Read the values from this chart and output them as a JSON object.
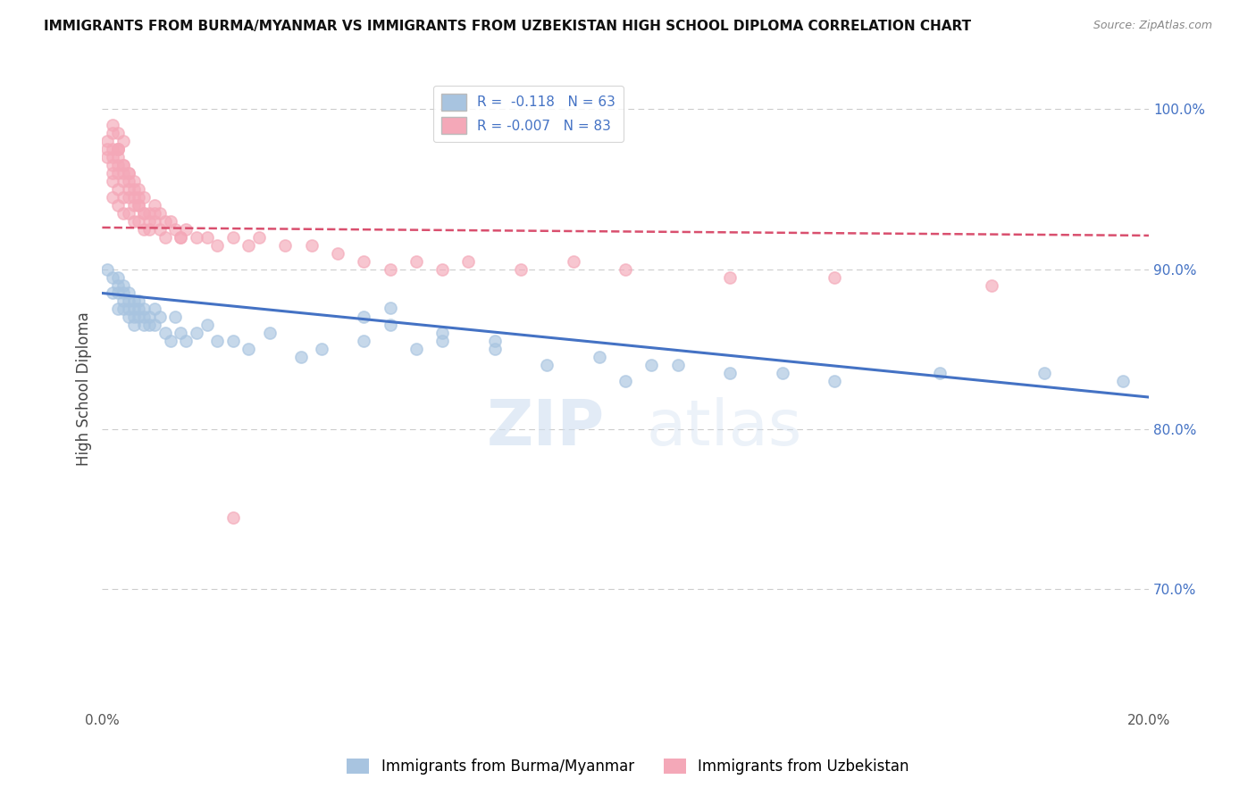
{
  "title": "IMMIGRANTS FROM BURMA/MYANMAR VS IMMIGRANTS FROM UZBEKISTAN HIGH SCHOOL DIPLOMA CORRELATION CHART",
  "source": "Source: ZipAtlas.com",
  "ylabel": "High School Diploma",
  "xlim": [
    0.0,
    0.2
  ],
  "ylim": [
    0.625,
    1.025
  ],
  "ytick_labels_right": [
    "100.0%",
    "90.0%",
    "80.0%",
    "70.0%"
  ],
  "ytick_positions_right": [
    1.0,
    0.9,
    0.8,
    0.7
  ],
  "legend_r_blue": "-0.118",
  "legend_n_blue": "63",
  "legend_r_pink": "-0.007",
  "legend_n_pink": "83",
  "blue_color": "#a8c4e0",
  "pink_color": "#f4a8b8",
  "blue_line_color": "#4472c4",
  "pink_line_color": "#d94f6e",
  "watermark_zip": "ZIP",
  "watermark_atlas": "atlas",
  "background_color": "#ffffff",
  "grid_color": "#cccccc",
  "blue_scatter_x": [
    0.001,
    0.002,
    0.002,
    0.003,
    0.003,
    0.003,
    0.003,
    0.004,
    0.004,
    0.004,
    0.004,
    0.005,
    0.005,
    0.005,
    0.005,
    0.006,
    0.006,
    0.006,
    0.006,
    0.007,
    0.007,
    0.007,
    0.008,
    0.008,
    0.008,
    0.009,
    0.009,
    0.01,
    0.01,
    0.011,
    0.012,
    0.013,
    0.014,
    0.015,
    0.016,
    0.018,
    0.02,
    0.022,
    0.025,
    0.028,
    0.032,
    0.038,
    0.042,
    0.05,
    0.06,
    0.065,
    0.075,
    0.085,
    0.095,
    0.105,
    0.12,
    0.14,
    0.16,
    0.18,
    0.195,
    0.05,
    0.055,
    0.065,
    0.075,
    0.11,
    0.13,
    0.1,
    0.055
  ],
  "blue_scatter_y": [
    0.9,
    0.895,
    0.885,
    0.895,
    0.89,
    0.885,
    0.875,
    0.89,
    0.885,
    0.88,
    0.875,
    0.885,
    0.88,
    0.875,
    0.87,
    0.88,
    0.875,
    0.87,
    0.865,
    0.88,
    0.875,
    0.87,
    0.875,
    0.87,
    0.865,
    0.87,
    0.865,
    0.875,
    0.865,
    0.87,
    0.86,
    0.855,
    0.87,
    0.86,
    0.855,
    0.86,
    0.865,
    0.855,
    0.855,
    0.85,
    0.86,
    0.845,
    0.85,
    0.855,
    0.85,
    0.855,
    0.85,
    0.84,
    0.845,
    0.84,
    0.835,
    0.83,
    0.835,
    0.835,
    0.83,
    0.87,
    0.865,
    0.86,
    0.855,
    0.84,
    0.835,
    0.83,
    0.876
  ],
  "pink_scatter_x": [
    0.001,
    0.001,
    0.001,
    0.002,
    0.002,
    0.002,
    0.002,
    0.002,
    0.002,
    0.003,
    0.003,
    0.003,
    0.003,
    0.003,
    0.003,
    0.004,
    0.004,
    0.004,
    0.004,
    0.004,
    0.005,
    0.005,
    0.005,
    0.005,
    0.006,
    0.006,
    0.006,
    0.006,
    0.007,
    0.007,
    0.007,
    0.007,
    0.008,
    0.008,
    0.008,
    0.009,
    0.009,
    0.01,
    0.01,
    0.011,
    0.011,
    0.012,
    0.012,
    0.013,
    0.014,
    0.015,
    0.016,
    0.018,
    0.02,
    0.022,
    0.025,
    0.028,
    0.03,
    0.035,
    0.04,
    0.045,
    0.05,
    0.055,
    0.06,
    0.065,
    0.07,
    0.08,
    0.09,
    0.1,
    0.12,
    0.14,
    0.17,
    0.002,
    0.003,
    0.004,
    0.003,
    0.002,
    0.003,
    0.004,
    0.005,
    0.005,
    0.006,
    0.007,
    0.008,
    0.009,
    0.01,
    0.015,
    0.025
  ],
  "pink_scatter_y": [
    0.98,
    0.975,
    0.97,
    0.975,
    0.97,
    0.965,
    0.96,
    0.955,
    0.945,
    0.975,
    0.97,
    0.965,
    0.96,
    0.95,
    0.94,
    0.965,
    0.96,
    0.955,
    0.945,
    0.935,
    0.96,
    0.955,
    0.945,
    0.935,
    0.955,
    0.95,
    0.94,
    0.93,
    0.95,
    0.945,
    0.94,
    0.93,
    0.945,
    0.935,
    0.925,
    0.935,
    0.925,
    0.94,
    0.93,
    0.935,
    0.925,
    0.93,
    0.92,
    0.93,
    0.925,
    0.92,
    0.925,
    0.92,
    0.92,
    0.915,
    0.92,
    0.915,
    0.92,
    0.915,
    0.915,
    0.91,
    0.905,
    0.9,
    0.905,
    0.9,
    0.905,
    0.9,
    0.905,
    0.9,
    0.895,
    0.895,
    0.89,
    0.99,
    0.985,
    0.98,
    0.975,
    0.985,
    0.975,
    0.965,
    0.96,
    0.95,
    0.945,
    0.94,
    0.935,
    0.93,
    0.935,
    0.92,
    0.745
  ],
  "blue_trend_x": [
    0.0,
    0.2
  ],
  "blue_trend_y": [
    0.885,
    0.82
  ],
  "pink_trend_x": [
    0.0,
    0.2
  ],
  "pink_trend_y": [
    0.926,
    0.921
  ]
}
